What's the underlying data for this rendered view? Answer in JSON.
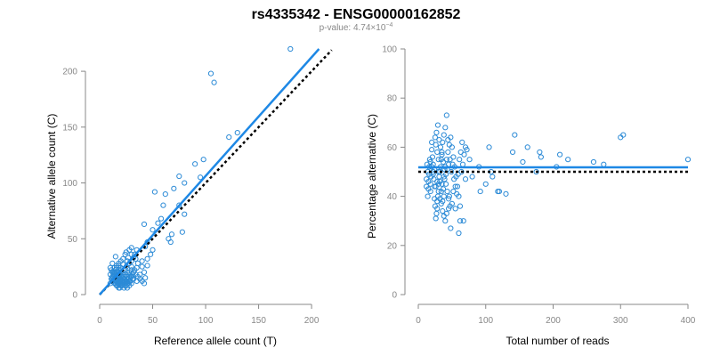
{
  "figure": {
    "title": "rs4335342 - ENSG00000162852",
    "subtitle_prefix": "p-value: 4.74×10",
    "subtitle_exponent": "−4"
  },
  "colors": {
    "points": "#2b8ad6",
    "fit_line": "#1e88e5",
    "expected_line": "#000000",
    "axis": "#888888"
  },
  "chart_data": [
    {
      "type": "scatter",
      "title": "",
      "xlabel": "Reference allele count (T)",
      "ylabel": "Alternative allele count (C)",
      "xlim": [
        0,
        210
      ],
      "ylim": [
        0,
        220
      ],
      "xticks": [
        0,
        50,
        100,
        150,
        200
      ],
      "yticks": [
        0,
        50,
        100,
        150,
        200
      ],
      "grid": false,
      "legend": "none",
      "fit_line": {
        "x": [
          0,
          207
        ],
        "y": [
          0,
          220
        ],
        "style": "solid"
      },
      "expected_line": {
        "x": [
          0,
          219
        ],
        "y": [
          0,
          219
        ],
        "style": "dotted"
      },
      "points": [
        [
          180,
          220
        ],
        [
          105,
          198
        ],
        [
          108,
          190
        ],
        [
          130,
          145
        ],
        [
          122,
          141
        ],
        [
          90,
          117
        ],
        [
          98,
          121
        ],
        [
          95,
          105
        ],
        [
          75,
          106
        ],
        [
          80,
          100
        ],
        [
          70,
          95
        ],
        [
          52,
          92
        ],
        [
          62,
          90
        ],
        [
          60,
          80
        ],
        [
          75,
          80
        ],
        [
          80,
          72
        ],
        [
          78,
          56
        ],
        [
          68,
          54
        ],
        [
          65,
          50
        ],
        [
          67,
          47
        ],
        [
          58,
          68
        ],
        [
          55,
          64
        ],
        [
          42,
          63
        ],
        [
          50,
          58
        ],
        [
          45,
          47
        ],
        [
          43,
          43
        ],
        [
          50,
          40
        ],
        [
          48,
          36
        ],
        [
          45,
          32
        ],
        [
          40,
          30
        ],
        [
          42,
          20
        ],
        [
          36,
          28
        ],
        [
          45,
          26
        ],
        [
          40,
          25
        ],
        [
          43,
          15
        ],
        [
          33,
          36
        ],
        [
          35,
          40
        ],
        [
          30,
          42
        ],
        [
          30,
          36
        ],
        [
          28,
          40
        ],
        [
          32,
          33
        ],
        [
          25,
          38
        ],
        [
          27,
          33
        ],
        [
          30,
          30
        ],
        [
          34,
          32
        ],
        [
          24,
          36
        ],
        [
          26,
          30
        ],
        [
          22,
          32
        ],
        [
          28,
          28
        ],
        [
          30,
          25
        ],
        [
          35,
          24
        ],
        [
          33,
          22
        ],
        [
          38,
          18
        ],
        [
          20,
          30
        ],
        [
          22,
          27
        ],
        [
          25,
          25
        ],
        [
          18,
          28
        ],
        [
          20,
          24
        ],
        [
          24,
          22
        ],
        [
          26,
          20
        ],
        [
          28,
          18
        ],
        [
          30,
          16
        ],
        [
          32,
          14
        ],
        [
          35,
          12
        ],
        [
          15,
          34
        ],
        [
          16,
          26
        ],
        [
          18,
          22
        ],
        [
          20,
          20
        ],
        [
          22,
          18
        ],
        [
          24,
          16
        ],
        [
          26,
          14
        ],
        [
          28,
          12
        ],
        [
          30,
          10
        ],
        [
          12,
          28
        ],
        [
          14,
          24
        ],
        [
          16,
          20
        ],
        [
          18,
          18
        ],
        [
          20,
          16
        ],
        [
          22,
          14
        ],
        [
          24,
          12
        ],
        [
          26,
          10
        ],
        [
          28,
          8
        ],
        [
          10,
          24
        ],
        [
          12,
          20
        ],
        [
          14,
          18
        ],
        [
          16,
          16
        ],
        [
          18,
          14
        ],
        [
          20,
          12
        ],
        [
          22,
          10
        ],
        [
          24,
          8
        ],
        [
          26,
          6
        ],
        [
          11,
          22
        ],
        [
          13,
          16
        ],
        [
          15,
          14
        ],
        [
          17,
          12
        ],
        [
          19,
          10
        ],
        [
          21,
          8
        ],
        [
          23,
          6
        ],
        [
          12,
          12
        ],
        [
          14,
          10
        ],
        [
          16,
          8
        ],
        [
          18,
          6
        ],
        [
          10,
          18
        ],
        [
          12,
          14
        ],
        [
          14,
          14
        ],
        [
          16,
          12
        ],
        [
          18,
          10
        ],
        [
          20,
          8
        ],
        [
          13,
          20
        ],
        [
          15,
          18
        ],
        [
          17,
          16
        ],
        [
          19,
          14
        ],
        [
          21,
          12
        ],
        [
          23,
          10
        ],
        [
          25,
          8
        ],
        [
          27,
          10
        ],
        [
          29,
          12
        ],
        [
          31,
          14
        ],
        [
          15,
          22
        ],
        [
          17,
          20
        ],
        [
          19,
          18
        ],
        [
          21,
          16
        ],
        [
          23,
          14
        ],
        [
          25,
          12
        ],
        [
          27,
          14
        ],
        [
          29,
          16
        ],
        [
          31,
          18
        ],
        [
          11,
          14
        ],
        [
          13,
          12
        ],
        [
          15,
          10
        ],
        [
          17,
          8
        ],
        [
          19,
          6
        ],
        [
          10,
          10
        ],
        [
          12,
          16
        ],
        [
          14,
          20
        ],
        [
          16,
          24
        ],
        [
          18,
          26
        ],
        [
          20,
          22
        ],
        [
          22,
          20
        ],
        [
          24,
          18
        ],
        [
          26,
          16
        ],
        [
          28,
          20
        ],
        [
          30,
          22
        ],
        [
          32,
          20
        ],
        [
          34,
          18
        ],
        [
          36,
          16
        ],
        [
          38,
          14
        ],
        [
          40,
          12
        ],
        [
          42,
          10
        ]
      ]
    },
    {
      "type": "scatter",
      "title": "",
      "xlabel": "Total number of reads",
      "ylabel": "Percentage alternative (C)",
      "xlim": [
        0,
        400
      ],
      "ylim": [
        0,
        100
      ],
      "xticks": [
        0,
        100,
        200,
        300,
        400
      ],
      "yticks": [
        0,
        20,
        40,
        60,
        80,
        100
      ],
      "grid": false,
      "legend": "none",
      "fit_line": {
        "x": [
          0,
          400
        ],
        "y": [
          51.8,
          51.8
        ],
        "style": "solid"
      },
      "expected_line": {
        "x": [
          0,
          400
        ],
        "y": [
          50,
          50
        ],
        "style": "dotted"
      },
      "points": [
        [
          400,
          55
        ],
        [
          304,
          65
        ],
        [
          300,
          64
        ],
        [
          275,
          53
        ],
        [
          260,
          54
        ],
        [
          222,
          55
        ],
        [
          210,
          57
        ],
        [
          205,
          52
        ],
        [
          180,
          58
        ],
        [
          182,
          56
        ],
        [
          175,
          50
        ],
        [
          162,
          60
        ],
        [
          155,
          54
        ],
        [
          143,
          65
        ],
        [
          140,
          58
        ],
        [
          130,
          41
        ],
        [
          120,
          42
        ],
        [
          118,
          42
        ],
        [
          110,
          48
        ],
        [
          105,
          60
        ],
        [
          108,
          50
        ],
        [
          100,
          45
        ],
        [
          92,
          42
        ],
        [
          90,
          52
        ],
        [
          80,
          48
        ],
        [
          76,
          55
        ],
        [
          70,
          60
        ],
        [
          72,
          59
        ],
        [
          67,
          30
        ],
        [
          62,
          30
        ],
        [
          60,
          25
        ],
        [
          55,
          35
        ],
        [
          50,
          37
        ],
        [
          52,
          42
        ],
        [
          48,
          27
        ],
        [
          46,
          40
        ],
        [
          44,
          63
        ],
        [
          42,
          73
        ],
        [
          40,
          68
        ],
        [
          38,
          65
        ],
        [
          36,
          62
        ],
        [
          35,
          58
        ],
        [
          34,
          55
        ],
        [
          33,
          52
        ],
        [
          32,
          50
        ],
        [
          31,
          48
        ],
        [
          30,
          45
        ],
        [
          30,
          42
        ],
        [
          29,
          40
        ],
        [
          28,
          38
        ],
        [
          28,
          35
        ],
        [
          27,
          33
        ],
        [
          26,
          31
        ],
        [
          25,
          36
        ],
        [
          24,
          39
        ],
        [
          24,
          44
        ],
        [
          23,
          47
        ],
        [
          22,
          50
        ],
        [
          22,
          53
        ],
        [
          21,
          56
        ],
        [
          20,
          59
        ],
        [
          20,
          62
        ],
        [
          19,
          48
        ],
        [
          18,
          45
        ],
        [
          18,
          42
        ],
        [
          17,
          55
        ],
        [
          16,
          52
        ],
        [
          16,
          49
        ],
        [
          15,
          46
        ],
        [
          15,
          43
        ],
        [
          14,
          40
        ],
        [
          14,
          50
        ],
        [
          13,
          53
        ],
        [
          12,
          47
        ],
        [
          12,
          44
        ],
        [
          38,
          48
        ],
        [
          40,
          52
        ],
        [
          42,
          55
        ],
        [
          44,
          58
        ],
        [
          46,
          61
        ],
        [
          48,
          64
        ],
        [
          50,
          60
        ],
        [
          52,
          56
        ],
        [
          54,
          52
        ],
        [
          56,
          48
        ],
        [
          58,
          44
        ],
        [
          60,
          40
        ],
        [
          62,
          36
        ],
        [
          64,
          50
        ],
        [
          66,
          53
        ],
        [
          68,
          57
        ],
        [
          70,
          47
        ],
        [
          45,
          35
        ],
        [
          42,
          33
        ],
        [
          40,
          30
        ],
        [
          38,
          32
        ],
        [
          36,
          34
        ],
        [
          34,
          37
        ],
        [
          32,
          39
        ],
        [
          30,
          55
        ],
        [
          28,
          58
        ],
        [
          26,
          61
        ],
        [
          25,
          64
        ],
        [
          27,
          66
        ],
        [
          29,
          69
        ],
        [
          31,
          63
        ],
        [
          33,
          60
        ],
        [
          35,
          57
        ],
        [
          37,
          54
        ],
        [
          39,
          51
        ],
        [
          41,
          45
        ],
        [
          43,
          42
        ],
        [
          45,
          39
        ],
        [
          47,
          36
        ],
        [
          49,
          50
        ],
        [
          51,
          53
        ],
        [
          53,
          47
        ],
        [
          55,
          44
        ],
        [
          57,
          41
        ],
        [
          59,
          49
        ],
        [
          61,
          55
        ],
        [
          63,
          58
        ],
        [
          65,
          62
        ],
        [
          35,
          45
        ],
        [
          37,
          43
        ],
        [
          39,
          47
        ],
        [
          41,
          49
        ],
        [
          43,
          51
        ],
        [
          45,
          53
        ],
        [
          47,
          55
        ],
        [
          30,
          50
        ],
        [
          32,
          46
        ],
        [
          34,
          42
        ],
        [
          36,
          38
        ],
        [
          38,
          40
        ],
        [
          26,
          44
        ],
        [
          28,
          46
        ],
        [
          20,
          52
        ],
        [
          22,
          49
        ],
        [
          24,
          51
        ],
        [
          18,
          54
        ]
      ]
    }
  ]
}
